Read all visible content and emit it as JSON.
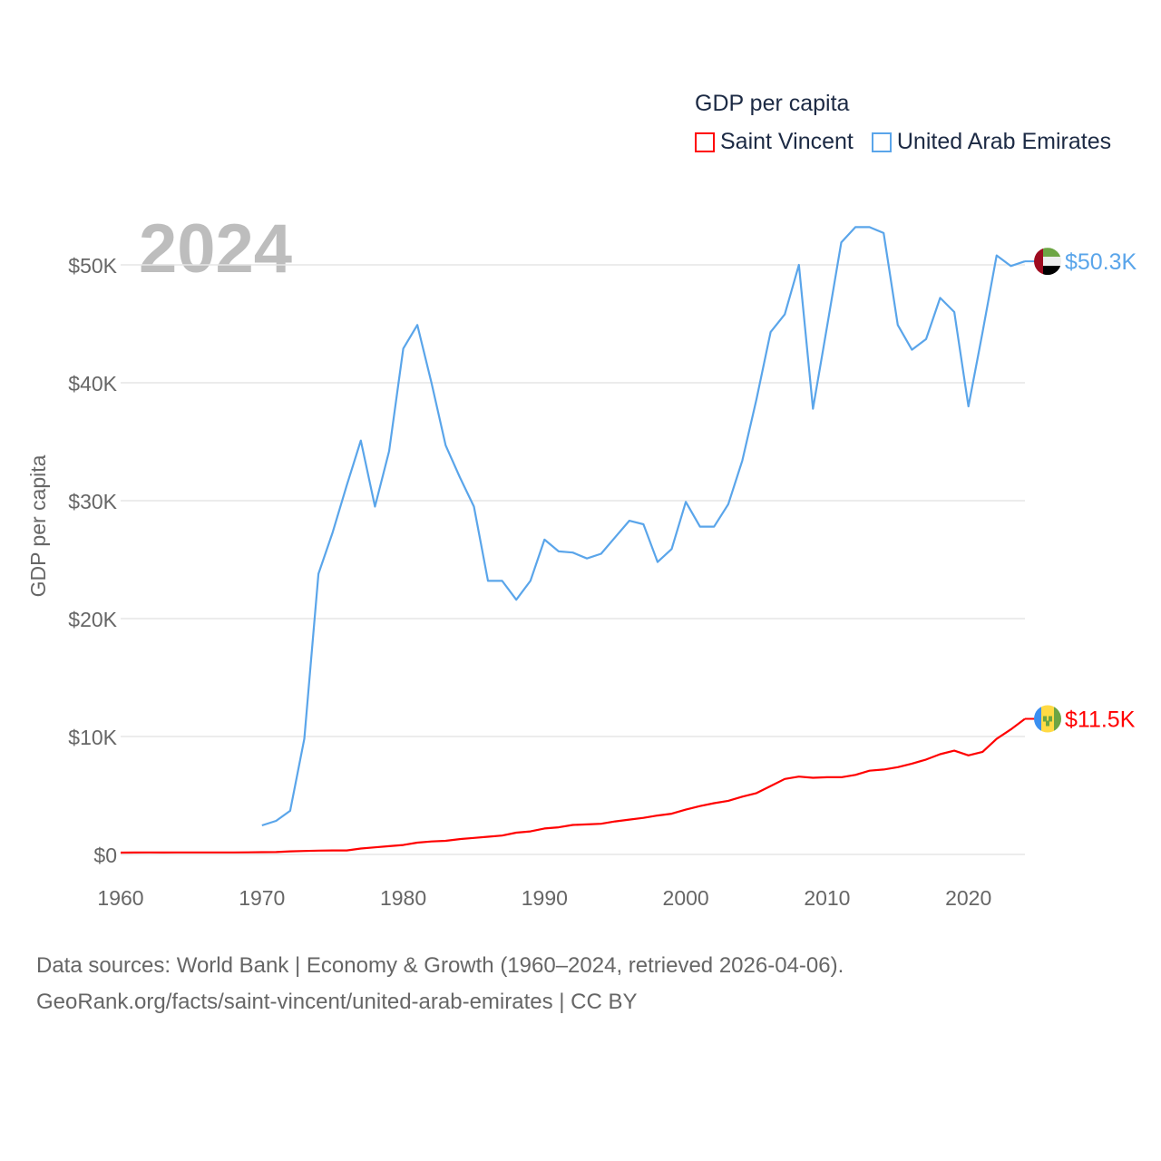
{
  "legend": {
    "title": "GDP per capita",
    "items": [
      {
        "label": "Saint Vincent",
        "color": "#ff0000"
      },
      {
        "label": "United Arab Emirates",
        "color": "#5aa5ea"
      }
    ]
  },
  "year_label": "2024",
  "sources": {
    "line1": "Data sources: World Bank | Economy & Growth (1960–2024, retrieved 2026-04-06).",
    "line2": "GeoRank.org/facts/saint-vincent/united-arab-emirates | CC BY"
  },
  "chart_data": {
    "type": "line",
    "title": "GDP per capita",
    "xlabel": "",
    "ylabel": "GDP per capita",
    "xlim": [
      1960,
      2024
    ],
    "ylim": [
      0,
      55000
    ],
    "grid": true,
    "legend_position": "top-right",
    "x_ticks": [
      1960,
      1970,
      1980,
      1990,
      2000,
      2010,
      2020
    ],
    "x_tick_labels": [
      "1960",
      "1970",
      "1980",
      "1990",
      "2000",
      "2010",
      "2020"
    ],
    "y_ticks": [
      0,
      10000,
      20000,
      30000,
      40000,
      50000
    ],
    "y_tick_labels": [
      "$0",
      "$10K",
      "$20K",
      "$30K",
      "$40K",
      "$50K"
    ],
    "series": [
      {
        "name": "Saint Vincent",
        "color": "#ff0000",
        "end_label": "$11.5K",
        "start_year": 1960,
        "values": [
          150,
          160,
          170,
          160,
          170,
          170,
          170,
          170,
          170,
          180,
          190,
          200,
          260,
          290,
          320,
          340,
          340,
          500,
          600,
          700,
          800,
          1000,
          1100,
          1150,
          1300,
          1400,
          1500,
          1600,
          1850,
          1950,
          2200,
          2300,
          2500,
          2550,
          2600,
          2800,
          2950,
          3100,
          3300,
          3450,
          3800,
          4100,
          4350,
          4550,
          4900,
          5200,
          5800,
          6400,
          6600,
          6500,
          6550,
          6550,
          6750,
          7100,
          7200,
          7400,
          7700,
          8050,
          8500,
          8800,
          8400,
          8700,
          9800,
          10600,
          11500
        ]
      },
      {
        "name": "United Arab Emirates",
        "color": "#5aa5ea",
        "end_label": "$50.3K",
        "start_year": 1970,
        "values": [
          2460,
          2850,
          3700,
          9800,
          23800,
          27300,
          31300,
          35100,
          29500,
          34200,
          42900,
          44900,
          40000,
          34700,
          32000,
          29500,
          23200,
          23200,
          21600,
          23200,
          26700,
          25700,
          25600,
          25100,
          25500,
          26900,
          28300,
          28000,
          24800,
          25900,
          29900,
          27800,
          27800,
          29700,
          33400,
          38600,
          44300,
          45800,
          50000,
          37800,
          44800,
          51900,
          53200,
          53200,
          52700,
          44900,
          42800,
          43700,
          47200,
          46000,
          38000,
          44300,
          50800,
          49900,
          50300
        ]
      }
    ]
  }
}
